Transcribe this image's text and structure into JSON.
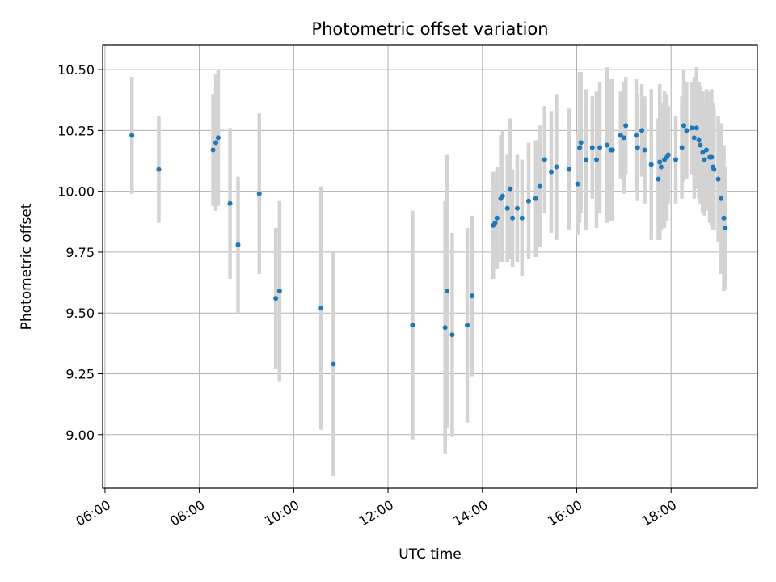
{
  "chart_data": {
    "type": "scatter",
    "title": "Photometric offset variation",
    "xlabel": "UTC time",
    "ylabel": "Photometric offset",
    "x_unit": "hours",
    "xlim": [
      5.95,
      19.83
    ],
    "ylim": [
      8.78,
      10.6
    ],
    "xticks": [
      6,
      8,
      10,
      12,
      14,
      16,
      18
    ],
    "xtick_labels": [
      "06:00",
      "08:00",
      "10:00",
      "12:00",
      "14:00",
      "16:00",
      "18:00"
    ],
    "yticks": [
      9.0,
      9.25,
      9.5,
      9.75,
      10.0,
      10.25,
      10.5
    ],
    "ytick_labels": [
      "9.00",
      "9.25",
      "9.50",
      "9.75",
      "10.00",
      "10.25",
      "10.50"
    ],
    "grid": true,
    "colors": {
      "marker": "#1f77b4",
      "errorbar": "#d3d3d3"
    },
    "series": [
      {
        "x": [
          6.57,
          7.14,
          8.29,
          8.35,
          8.4,
          8.65,
          8.82,
          9.27,
          9.62,
          9.7,
          10.58,
          10.84,
          12.52,
          13.21,
          13.25,
          13.36,
          13.68,
          13.78,
          14.23,
          14.27,
          14.31,
          14.39,
          14.43,
          14.53,
          14.59,
          14.64,
          14.74,
          14.84,
          14.98,
          15.13,
          15.22,
          15.32,
          15.46,
          15.57,
          15.84,
          16.02,
          16.06,
          16.09,
          16.2,
          16.33,
          16.42,
          16.49,
          16.64,
          16.72,
          16.76,
          16.93,
          17.0,
          17.04,
          17.26,
          17.29,
          17.38,
          17.44,
          17.58,
          17.73,
          17.76,
          17.79,
          17.86,
          17.91,
          17.94,
          18.1,
          18.23,
          18.27,
          18.33,
          18.44,
          18.49,
          18.54,
          18.59,
          18.62,
          18.67,
          18.71,
          18.75,
          18.82,
          18.86,
          18.89,
          18.91,
          19.0,
          19.06,
          19.12,
          19.15
        ],
        "y": [
          10.23,
          10.09,
          10.17,
          10.2,
          10.22,
          9.95,
          9.78,
          9.99,
          9.56,
          9.59,
          9.52,
          9.29,
          9.45,
          9.44,
          9.59,
          9.41,
          9.45,
          9.57,
          9.86,
          9.87,
          9.89,
          9.97,
          9.98,
          9.93,
          10.01,
          9.89,
          9.93,
          9.89,
          9.96,
          9.97,
          10.02,
          10.13,
          10.08,
          10.1,
          10.09,
          10.03,
          10.18,
          10.2,
          10.13,
          10.18,
          10.13,
          10.18,
          10.19,
          10.17,
          10.17,
          10.23,
          10.22,
          10.27,
          10.23,
          10.18,
          10.25,
          10.17,
          10.11,
          10.05,
          10.12,
          10.1,
          10.13,
          10.14,
          10.15,
          10.13,
          10.18,
          10.27,
          10.25,
          10.26,
          10.22,
          10.26,
          10.21,
          10.19,
          10.16,
          10.13,
          10.17,
          10.14,
          10.14,
          10.1,
          10.09,
          10.05,
          9.97,
          9.89,
          9.85
        ],
        "yerr": [
          0.24,
          0.22,
          0.23,
          0.28,
          0.28,
          0.31,
          0.28,
          0.33,
          0.29,
          0.37,
          0.5,
          0.46,
          0.47,
          0.52,
          0.56,
          0.42,
          0.4,
          0.33,
          0.22,
          0.18,
          0.21,
          0.26,
          0.27,
          0.22,
          0.29,
          0.2,
          0.22,
          0.24,
          0.24,
          0.24,
          0.25,
          0.22,
          0.25,
          0.3,
          0.25,
          0.21,
          0.31,
          0.29,
          0.29,
          0.21,
          0.28,
          0.27,
          0.32,
          0.29,
          0.29,
          0.18,
          0.23,
          0.2,
          0.23,
          0.22,
          0.19,
          0.22,
          0.31,
          0.25,
          0.32,
          0.26,
          0.28,
          0.26,
          0.2,
          0.18,
          0.21,
          0.23,
          0.2,
          0.19,
          0.25,
          0.25,
          0.24,
          0.24,
          0.25,
          0.23,
          0.25,
          0.27,
          0.28,
          0.26,
          0.25,
          0.26,
          0.31,
          0.3,
          0.25
        ]
      }
    ]
  }
}
